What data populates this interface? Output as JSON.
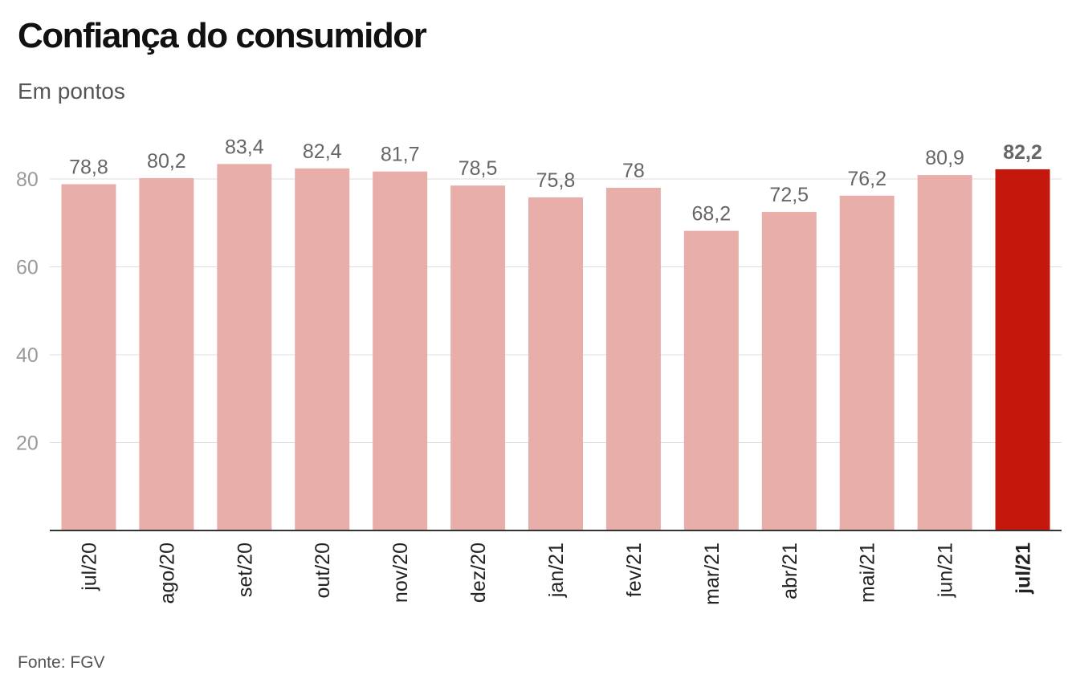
{
  "title": "Confiança do consumidor",
  "subtitle": "Em pontos",
  "source": "Fonte: FGV",
  "chart_data": {
    "type": "bar",
    "title": "Confiança do consumidor",
    "subtitle": "Em pontos",
    "categories": [
      "jul/20",
      "ago/20",
      "set/20",
      "out/20",
      "nov/20",
      "dez/20",
      "jan/21",
      "fev/21",
      "mar/21",
      "abr/21",
      "mai/21",
      "jun/21",
      "jul/21"
    ],
    "values": [
      78.8,
      80.2,
      83.4,
      82.4,
      81.7,
      78.5,
      75.8,
      78,
      68.2,
      72.5,
      76.2,
      80.9,
      82.2
    ],
    "value_labels": [
      "78,8",
      "80,2",
      "83,4",
      "82,4",
      "81,7",
      "78,5",
      "75,8",
      "78",
      "68,2",
      "72,5",
      "76,2",
      "80,9",
      "82,2"
    ],
    "highlight": "jul/21",
    "yticks": [
      "20",
      "40",
      "60",
      "80"
    ],
    "ylim": [
      0,
      90
    ],
    "grid": true,
    "colors": {
      "bar": "#e8aeaa",
      "highlight": "#c4180d",
      "grid": "#dddddd",
      "axis": "#333333",
      "tick": "#9a9a9a",
      "label": "#666666"
    }
  }
}
